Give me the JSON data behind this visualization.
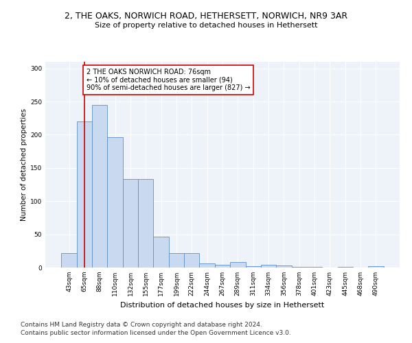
{
  "title": "2, THE OAKS, NORWICH ROAD, HETHERSETT, NORWICH, NR9 3AR",
  "subtitle": "Size of property relative to detached houses in Hethersett",
  "xlabel": "Distribution of detached houses by size in Hethersett",
  "ylabel": "Number of detached properties",
  "categories": [
    "43sqm",
    "65sqm",
    "88sqm",
    "110sqm",
    "132sqm",
    "155sqm",
    "177sqm",
    "199sqm",
    "222sqm",
    "244sqm",
    "267sqm",
    "289sqm",
    "311sqm",
    "334sqm",
    "356sqm",
    "378sqm",
    "401sqm",
    "423sqm",
    "445sqm",
    "468sqm",
    "490sqm"
  ],
  "values": [
    22,
    220,
    245,
    196,
    133,
    133,
    47,
    22,
    22,
    6,
    4,
    8,
    2,
    4,
    3,
    1,
    1,
    0,
    1,
    0,
    2
  ],
  "bar_color": "#c9d9f0",
  "bar_edge_color": "#5b8fc9",
  "vline_x": 1.0,
  "vline_color": "#cc0000",
  "annotation_text": "2 THE OAKS NORWICH ROAD: 76sqm\n← 10% of detached houses are smaller (94)\n90% of semi-detached houses are larger (827) →",
  "annotation_box_color": "#ffffff",
  "annotation_box_edge": "#cc0000",
  "ylim": [
    0,
    310
  ],
  "yticks": [
    0,
    50,
    100,
    150,
    200,
    250,
    300
  ],
  "footer_line1": "Contains HM Land Registry data © Crown copyright and database right 2024.",
  "footer_line2": "Contains public sector information licensed under the Open Government Licence v3.0.",
  "plot_bg_color": "#eef2f9",
  "title_fontsize": 9,
  "subtitle_fontsize": 8,
  "xlabel_fontsize": 8,
  "ylabel_fontsize": 7.5,
  "tick_fontsize": 6.5,
  "footer_fontsize": 6.5,
  "annotation_fontsize": 7
}
